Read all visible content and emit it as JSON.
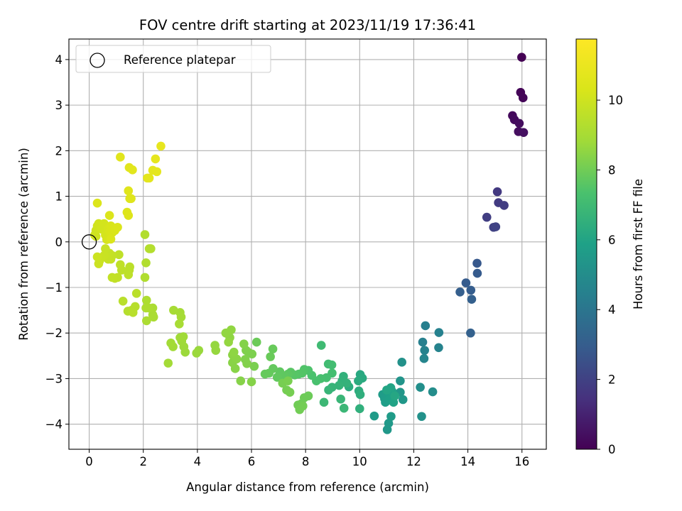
{
  "chart_data": {
    "type": "scatter",
    "title": "FOV centre drift starting at 2023/11/19 17:36:41",
    "xlabel": "Angular distance from reference (arcmin)",
    "ylabel": "Rotation from reference (arcmin)",
    "xlim": [
      -0.75,
      16.9
    ],
    "ylim": [
      -4.55,
      4.45
    ],
    "xticks": [
      0,
      2,
      4,
      6,
      8,
      10,
      12,
      14,
      16
    ],
    "yticks": [
      -4,
      -3,
      -2,
      -1,
      0,
      1,
      2,
      3,
      4
    ],
    "grid": true,
    "legend": {
      "placement": "top-left",
      "entries": [
        "Reference platepar"
      ]
    },
    "reference_point": {
      "x": 0,
      "y": 0,
      "marker": "open circle"
    },
    "colorbar": {
      "label": "Hours from first FF file",
      "min": 0,
      "max": 11.75,
      "ticks": [
        0,
        2,
        4,
        6,
        8,
        10
      ],
      "colormap": "viridis"
    },
    "points": [
      [
        15.99,
        4.05,
        0.0
      ],
      [
        15.95,
        3.28,
        0.1
      ],
      [
        16.04,
        3.16,
        0.15
      ],
      [
        15.65,
        2.77,
        0.25
      ],
      [
        15.72,
        2.68,
        0.3
      ],
      [
        15.9,
        2.6,
        0.35
      ],
      [
        15.87,
        2.42,
        0.4
      ],
      [
        16.06,
        2.4,
        0.45
      ],
      [
        15.09,
        1.1,
        1.7
      ],
      [
        15.13,
        0.86,
        1.8
      ],
      [
        15.34,
        0.8,
        1.85
      ],
      [
        14.7,
        0.54,
        1.9
      ],
      [
        14.95,
        0.32,
        2.0
      ],
      [
        15.03,
        0.33,
        2.05
      ],
      [
        14.34,
        -0.47,
        2.8
      ],
      [
        14.35,
        -0.69,
        2.9
      ],
      [
        13.93,
        -0.9,
        2.95
      ],
      [
        14.11,
        -1.06,
        3.0
      ],
      [
        13.71,
        -1.1,
        3.05
      ],
      [
        14.14,
        -1.26,
        3.1
      ],
      [
        14.1,
        -2.0,
        3.15
      ],
      [
        12.43,
        -1.84,
        4.4
      ],
      [
        12.93,
        -1.99,
        4.5
      ],
      [
        12.33,
        -2.2,
        4.45
      ],
      [
        12.4,
        -2.38,
        4.55
      ],
      [
        12.92,
        -2.32,
        4.6
      ],
      [
        12.38,
        -2.56,
        4.65
      ],
      [
        11.56,
        -2.64,
        5.2
      ],
      [
        12.7,
        -3.29,
        5.0
      ],
      [
        12.24,
        -3.19,
        5.1
      ],
      [
        12.29,
        -3.83,
        5.2
      ],
      [
        10.54,
        -3.82,
        5.6
      ],
      [
        11.5,
        -3.05,
        5.3
      ],
      [
        11.5,
        -3.3,
        5.4
      ],
      [
        11.6,
        -3.46,
        5.45
      ],
      [
        11.02,
        -4.12,
        5.5
      ],
      [
        11.07,
        -3.98,
        5.55
      ],
      [
        11.16,
        -3.83,
        5.6
      ],
      [
        10.85,
        -3.35,
        5.65
      ],
      [
        10.92,
        -3.44,
        5.7
      ],
      [
        10.95,
        -3.52,
        5.75
      ],
      [
        11.05,
        -3.3,
        5.8
      ],
      [
        11.1,
        -3.45,
        5.85
      ],
      [
        11.2,
        -3.28,
        5.9
      ],
      [
        11.25,
        -3.52,
        5.95
      ],
      [
        11.15,
        -3.2,
        6.0
      ],
      [
        11.0,
        -3.25,
        6.05
      ],
      [
        11.3,
        -3.38,
        6.1
      ],
      [
        10.02,
        -2.91,
        6.2
      ],
      [
        10.1,
        -2.99,
        6.25
      ],
      [
        9.95,
        -3.05,
        6.3
      ],
      [
        9.6,
        -3.18,
        6.35
      ],
      [
        9.97,
        -3.27,
        6.4
      ],
      [
        10.02,
        -3.35,
        6.45
      ],
      [
        10.0,
        -3.66,
        6.5
      ],
      [
        9.4,
        -2.95,
        6.55
      ],
      [
        9.35,
        -3.05,
        6.6
      ],
      [
        9.52,
        -3.1,
        6.62
      ],
      [
        9.24,
        -3.15,
        6.65
      ],
      [
        8.98,
        -3.19,
        6.7
      ],
      [
        8.85,
        -3.25,
        6.75
      ],
      [
        9.3,
        -3.45,
        6.8
      ],
      [
        9.42,
        -3.65,
        6.85
      ],
      [
        8.68,
        -3.52,
        6.9
      ],
      [
        8.58,
        -2.27,
        7.0
      ],
      [
        8.84,
        -2.68,
        7.05
      ],
      [
        8.97,
        -2.7,
        7.1
      ],
      [
        8.98,
        -2.88,
        7.15
      ],
      [
        8.77,
        -2.98,
        7.2
      ],
      [
        8.56,
        -3.0,
        7.25
      ],
      [
        8.4,
        -3.05,
        7.3
      ],
      [
        8.23,
        -2.93,
        7.35
      ],
      [
        8.1,
        -2.82,
        7.4
      ],
      [
        7.95,
        -2.8,
        7.45
      ],
      [
        7.87,
        -2.88,
        7.5
      ],
      [
        7.75,
        -2.9,
        7.52
      ],
      [
        7.6,
        -2.92,
        7.55
      ],
      [
        7.45,
        -2.86,
        7.6
      ],
      [
        7.35,
        -2.9,
        7.65
      ],
      [
        7.22,
        -2.94,
        7.7
      ],
      [
        7.05,
        -2.85,
        7.72
      ],
      [
        6.95,
        -2.97,
        7.75
      ],
      [
        6.8,
        -2.78,
        7.78
      ],
      [
        6.65,
        -2.88,
        7.8
      ],
      [
        6.5,
        -2.9,
        7.82
      ],
      [
        6.79,
        -2.35,
        7.85
      ],
      [
        6.7,
        -2.52,
        7.88
      ],
      [
        6.19,
        -2.2,
        7.9
      ],
      [
        8.1,
        -3.38,
        7.92
      ],
      [
        7.95,
        -3.42,
        7.95
      ],
      [
        7.85,
        -3.55,
        7.97
      ],
      [
        7.72,
        -3.58,
        8.0
      ],
      [
        7.78,
        -3.68,
        8.02
      ],
      [
        7.9,
        -3.6,
        8.05
      ],
      [
        7.3,
        -3.25,
        8.07
      ],
      [
        7.42,
        -3.3,
        8.1
      ],
      [
        7.15,
        -3.1,
        8.12
      ],
      [
        7.35,
        -3.05,
        8.15
      ],
      [
        6.1,
        -2.73,
        8.17
      ],
      [
        6.02,
        -2.46,
        8.2
      ],
      [
        5.9,
        -2.43,
        8.22
      ],
      [
        5.8,
        -2.38,
        8.25
      ],
      [
        5.77,
        -2.58,
        8.27
      ],
      [
        5.83,
        -2.67,
        8.3
      ],
      [
        5.72,
        -2.24,
        8.32
      ],
      [
        6.0,
        -3.07,
        8.35
      ],
      [
        5.6,
        -3.05,
        8.37
      ],
      [
        5.4,
        -2.78,
        8.4
      ],
      [
        5.3,
        -2.65,
        8.42
      ],
      [
        5.45,
        -2.57,
        8.45
      ],
      [
        5.3,
        -2.48,
        8.47
      ],
      [
        5.35,
        -2.42,
        8.5
      ],
      [
        5.2,
        -2.1,
        8.52
      ],
      [
        5.25,
        -1.93,
        8.55
      ],
      [
        5.05,
        -2.0,
        8.57
      ],
      [
        5.15,
        -2.2,
        8.6
      ],
      [
        4.65,
        -2.27,
        8.62
      ],
      [
        4.68,
        -2.38,
        8.65
      ],
      [
        4.05,
        -2.38,
        8.7
      ],
      [
        3.97,
        -2.44,
        8.72
      ],
      [
        3.55,
        -2.42,
        8.75
      ],
      [
        3.5,
        -2.3,
        8.77
      ],
      [
        3.42,
        -2.18,
        8.8
      ],
      [
        3.48,
        -2.08,
        8.82
      ],
      [
        3.36,
        -2.1,
        8.85
      ],
      [
        3.1,
        -2.3,
        8.87
      ],
      [
        3.02,
        -2.22,
        8.9
      ],
      [
        2.92,
        -2.66,
        8.92
      ],
      [
        3.36,
        -1.55,
        8.95
      ],
      [
        3.4,
        -1.65,
        8.97
      ],
      [
        3.12,
        -1.5,
        9.0
      ],
      [
        3.33,
        -1.8,
        9.02
      ],
      [
        2.35,
        -1.6,
        9.05
      ],
      [
        2.38,
        -1.65,
        9.07
      ],
      [
        2.35,
        -1.45,
        9.1
      ],
      [
        2.12,
        -1.73,
        9.12
      ],
      [
        2.2,
        -1.45,
        9.15
      ],
      [
        2.12,
        -1.28,
        9.17
      ],
      [
        2.1,
        -1.45,
        9.2
      ],
      [
        2.06,
        -0.78,
        9.22
      ],
      [
        2.1,
        -0.46,
        9.25
      ],
      [
        2.06,
        0.16,
        9.27
      ],
      [
        2.28,
        -0.15,
        9.3
      ],
      [
        2.22,
        -0.15,
        9.32
      ],
      [
        1.43,
        -1.52,
        9.35
      ],
      [
        1.57,
        -1.5,
        9.37
      ],
      [
        1.7,
        -1.42,
        9.4
      ],
      [
        1.62,
        -1.55,
        9.42
      ],
      [
        1.25,
        -1.3,
        9.45
      ],
      [
        1.75,
        -1.13,
        9.47
      ],
      [
        1.5,
        -0.55,
        9.5
      ],
      [
        1.48,
        -0.62,
        9.52
      ],
      [
        1.45,
        -0.72,
        9.55
      ],
      [
        1.2,
        -0.62,
        9.57
      ],
      [
        1.15,
        -0.5,
        9.6
      ],
      [
        1.1,
        -0.28,
        9.62
      ],
      [
        1.05,
        -0.78,
        9.65
      ],
      [
        0.95,
        -0.8,
        9.67
      ],
      [
        0.85,
        -0.78,
        9.7
      ],
      [
        0.85,
        -0.3,
        9.72
      ],
      [
        0.8,
        -0.38,
        9.75
      ],
      [
        0.75,
        -0.25,
        9.77
      ],
      [
        0.7,
        -0.38,
        9.8
      ],
      [
        0.6,
        -0.15,
        9.82
      ],
      [
        0.55,
        -0.3,
        9.85
      ],
      [
        0.45,
        -0.35,
        9.87
      ],
      [
        0.38,
        -0.42,
        9.9
      ],
      [
        0.35,
        -0.48,
        9.92
      ],
      [
        0.3,
        -0.33,
        9.95
      ],
      [
        0.25,
        0.12,
        9.97
      ],
      [
        0.2,
        0.15,
        10.0
      ],
      [
        0.25,
        0.25,
        10.02
      ],
      [
        0.3,
        0.35,
        10.05
      ],
      [
        0.35,
        0.4,
        10.07
      ],
      [
        0.45,
        0.28,
        10.1
      ],
      [
        0.55,
        0.4,
        10.12
      ],
      [
        0.6,
        0.15,
        10.15
      ],
      [
        0.65,
        0.05,
        10.17
      ],
      [
        0.7,
        0.28,
        10.2
      ],
      [
        0.75,
        0.22,
        10.22
      ],
      [
        0.8,
        0.35,
        10.25
      ],
      [
        0.85,
        0.2,
        10.27
      ],
      [
        0.9,
        0.3,
        10.3
      ],
      [
        0.95,
        0.25,
        10.32
      ],
      [
        1.05,
        0.32,
        10.35
      ],
      [
        0.8,
        0.06,
        10.37
      ],
      [
        0.75,
        0.58,
        10.4
      ],
      [
        0.3,
        0.85,
        10.42
      ],
      [
        1.4,
        0.65,
        10.45
      ],
      [
        1.45,
        0.58,
        10.47
      ],
      [
        1.5,
        0.95,
        10.5
      ],
      [
        1.55,
        0.95,
        10.52
      ],
      [
        1.45,
        1.12,
        10.55
      ],
      [
        1.15,
        1.86,
        10.6
      ],
      [
        1.48,
        1.63,
        10.62
      ],
      [
        1.6,
        1.58,
        10.65
      ],
      [
        2.15,
        1.4,
        10.7
      ],
      [
        2.22,
        1.4,
        10.72
      ],
      [
        2.35,
        1.57,
        10.75
      ],
      [
        2.5,
        1.54,
        10.77
      ],
      [
        2.45,
        1.82,
        10.8
      ],
      [
        2.65,
        2.1,
        10.85
      ]
    ]
  }
}
